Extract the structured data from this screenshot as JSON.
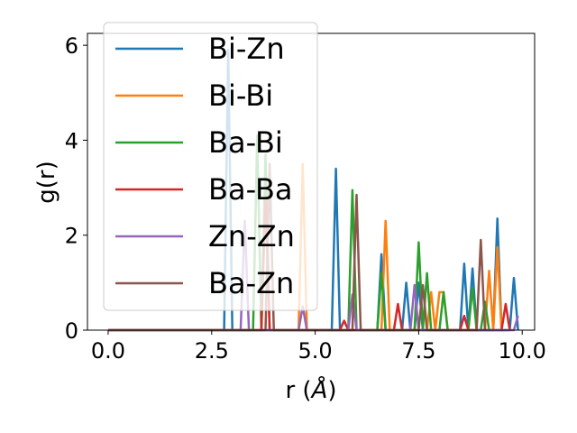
{
  "chart_data": {
    "type": "line",
    "title": "",
    "xlabel": "r (",
    "xlabel_unit": "Å",
    "xlabel_close": ")",
    "ylabel": "g(r)",
    "xlim": [
      -0.5,
      10.3
    ],
    "ylim": [
      0,
      6.25
    ],
    "xticks": [
      0.0,
      2.5,
      5.0,
      7.5,
      10.0
    ],
    "xtick_labels": [
      "0.0",
      "2.5",
      "5.0",
      "7.5",
      "10.0"
    ],
    "yticks": [
      0,
      2,
      4,
      6
    ],
    "ytick_labels": [
      "0",
      "2",
      "4",
      "6"
    ],
    "grid": false,
    "legend_position": "top-left",
    "series": [
      {
        "name": "Bi-Zn",
        "color": "#1f77b4",
        "x": [
          0,
          2.7,
          2.8,
          2.9,
          3.0,
          3.1,
          5.3,
          5.4,
          5.5,
          5.6,
          5.7,
          6.4,
          6.5,
          6.6,
          6.7,
          6.8,
          7.0,
          7.1,
          7.2,
          7.3,
          7.4,
          7.5,
          7.6,
          8.4,
          8.5,
          8.6,
          8.7,
          8.8,
          8.9,
          9.0,
          9.2,
          9.3,
          9.4,
          9.5,
          9.6,
          9.7,
          9.8,
          9.9
        ],
        "y": [
          0,
          0,
          0,
          5.9,
          0,
          0,
          0,
          0,
          3.4,
          0,
          0,
          0,
          0,
          1.6,
          0,
          0,
          0,
          0,
          1.0,
          0,
          0,
          1.0,
          0,
          0,
          0,
          1.4,
          0,
          1.3,
          0,
          0,
          0,
          0,
          2.35,
          0,
          0,
          0,
          1.1,
          0
        ]
      },
      {
        "name": "Bi-Bi",
        "color": "#ff7f0e",
        "x": [
          0,
          4.5,
          4.6,
          4.7,
          4.8,
          4.9,
          6.5,
          6.6,
          6.7,
          6.8,
          7.7,
          7.8,
          7.9,
          8.0,
          8.1,
          8.2,
          8.9,
          9.0,
          9.1,
          9.2,
          9.3,
          9.4,
          9.5,
          9.6
        ],
        "y": [
          0,
          0,
          0,
          3.5,
          0,
          0,
          0,
          0,
          2.3,
          0,
          0,
          0.8,
          0,
          0.8,
          0.8,
          0,
          0,
          0,
          0,
          1.25,
          0,
          1.75,
          0,
          0
        ]
      },
      {
        "name": "Ba-Bi",
        "color": "#2ca02c",
        "x": [
          0,
          3.4,
          3.5,
          3.6,
          3.7,
          3.8,
          3.9,
          5.7,
          5.8,
          5.9,
          6.0,
          6.1,
          6.5,
          6.6,
          6.7,
          7.4,
          7.5,
          7.6,
          7.7,
          7.8,
          7.9,
          8.0,
          8.1,
          8.2,
          8.6,
          8.7,
          8.8,
          8.9,
          9.0,
          9.1,
          9.2,
          9.3,
          9.5,
          9.6
        ],
        "y": [
          0,
          0,
          0,
          4.1,
          0,
          3.7,
          0,
          0,
          0,
          2.95,
          0,
          0,
          0,
          1.2,
          0,
          0,
          1.85,
          0,
          1.2,
          0,
          0,
          0,
          0.8,
          0,
          0,
          0,
          0.9,
          0,
          0,
          0.6,
          0,
          0,
          0,
          0
        ]
      },
      {
        "name": "Ba-Ba",
        "color": "#d62728",
        "x": [
          0,
          3.6,
          3.7,
          3.8,
          3.9,
          5.6,
          5.7,
          5.8,
          5.9,
          6.9,
          7.0,
          7.1,
          7.2,
          8.5,
          8.6,
          8.7,
          9.4,
          9.5,
          9.6,
          9.7
        ],
        "y": [
          0,
          0,
          0,
          2.8,
          0,
          0,
          0.2,
          0,
          0,
          0,
          0.55,
          0,
          0,
          0,
          0.3,
          0,
          0,
          0,
          0.55,
          0
        ]
      },
      {
        "name": "Zn-Zn",
        "color": "#9467bd",
        "x": [
          0,
          3.2,
          3.3,
          3.4,
          4.6,
          4.7,
          4.8,
          5.8,
          5.9,
          6.0,
          7.3,
          7.4,
          7.5,
          9.8,
          9.9
        ],
        "y": [
          0,
          0,
          2.3,
          0,
          0,
          0.5,
          0,
          0,
          0.75,
          0,
          0,
          0.95,
          0,
          0,
          0.3
        ]
      },
      {
        "name": "Ba-Zn",
        "color": "#8c564b",
        "x": [
          0,
          3.8,
          3.9,
          4.0,
          5.9,
          6.0,
          6.1,
          7.5,
          7.6,
          7.7,
          8.8,
          8.9,
          9.0,
          9.1
        ],
        "y": [
          0,
          0,
          3.5,
          0,
          0,
          2.85,
          0,
          0,
          0.95,
          0,
          0,
          0,
          1.9,
          0
        ]
      }
    ]
  }
}
